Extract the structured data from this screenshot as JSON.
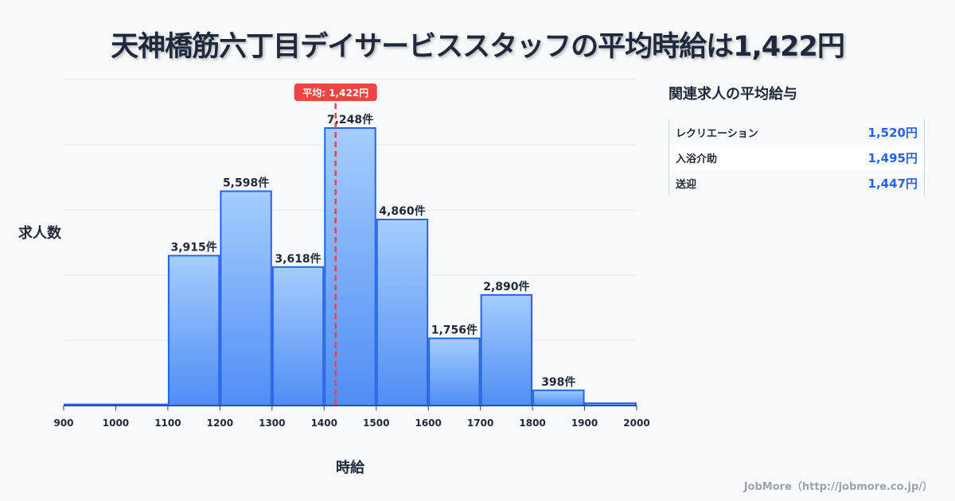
{
  "title": "天神橋筋六丁目デイサービススタッフの平均時給は1,422円",
  "chart_data": {
    "type": "bar",
    "xlabel": "時給",
    "ylabel": "求人数",
    "x_ticks": [
      "900",
      "1000",
      "1100",
      "1200",
      "1300",
      "1400",
      "1500",
      "1600",
      "1700",
      "1800",
      "1900",
      "2000"
    ],
    "bins": [
      {
        "from": 900,
        "to": 1000,
        "value": 30,
        "label": ""
      },
      {
        "from": 1000,
        "to": 1100,
        "value": 30,
        "label": ""
      },
      {
        "from": 1100,
        "to": 1200,
        "value": 3915,
        "label": "3,915件"
      },
      {
        "from": 1200,
        "to": 1300,
        "value": 5598,
        "label": "5,598件"
      },
      {
        "from": 1300,
        "to": 1400,
        "value": 3618,
        "label": "3,618件"
      },
      {
        "from": 1400,
        "to": 1500,
        "value": 7248,
        "label": "7,248件"
      },
      {
        "from": 1500,
        "to": 1600,
        "value": 4860,
        "label": "4,860件"
      },
      {
        "from": 1600,
        "to": 1700,
        "value": 1756,
        "label": "1,756件"
      },
      {
        "from": 1700,
        "to": 1800,
        "value": 2890,
        "label": "2,890件"
      },
      {
        "from": 1800,
        "to": 1900,
        "value": 398,
        "label": "398件"
      },
      {
        "from": 1900,
        "to": 2000,
        "value": 60,
        "label": ""
      }
    ],
    "xlim": [
      900,
      2000
    ],
    "ylim": [
      0,
      8515
    ],
    "grid": true,
    "mean": {
      "value": 1422,
      "label": "平均: 1,422円"
    },
    "colors": {
      "bar_top": "#a5cdfd",
      "bar_bottom": "#4f8ef5",
      "bar_stroke": "#2563eb",
      "mean": "#ef4444"
    }
  },
  "side": {
    "title": "関連求人の平均給与",
    "rows": [
      {
        "name": "レクリエーション",
        "value": "1,520円"
      },
      {
        "name": "入浴介助",
        "value": "1,495円"
      },
      {
        "name": "送迎",
        "value": "1,447円"
      }
    ]
  },
  "footer": "JobMore（http://jobmore.co.jp/）"
}
